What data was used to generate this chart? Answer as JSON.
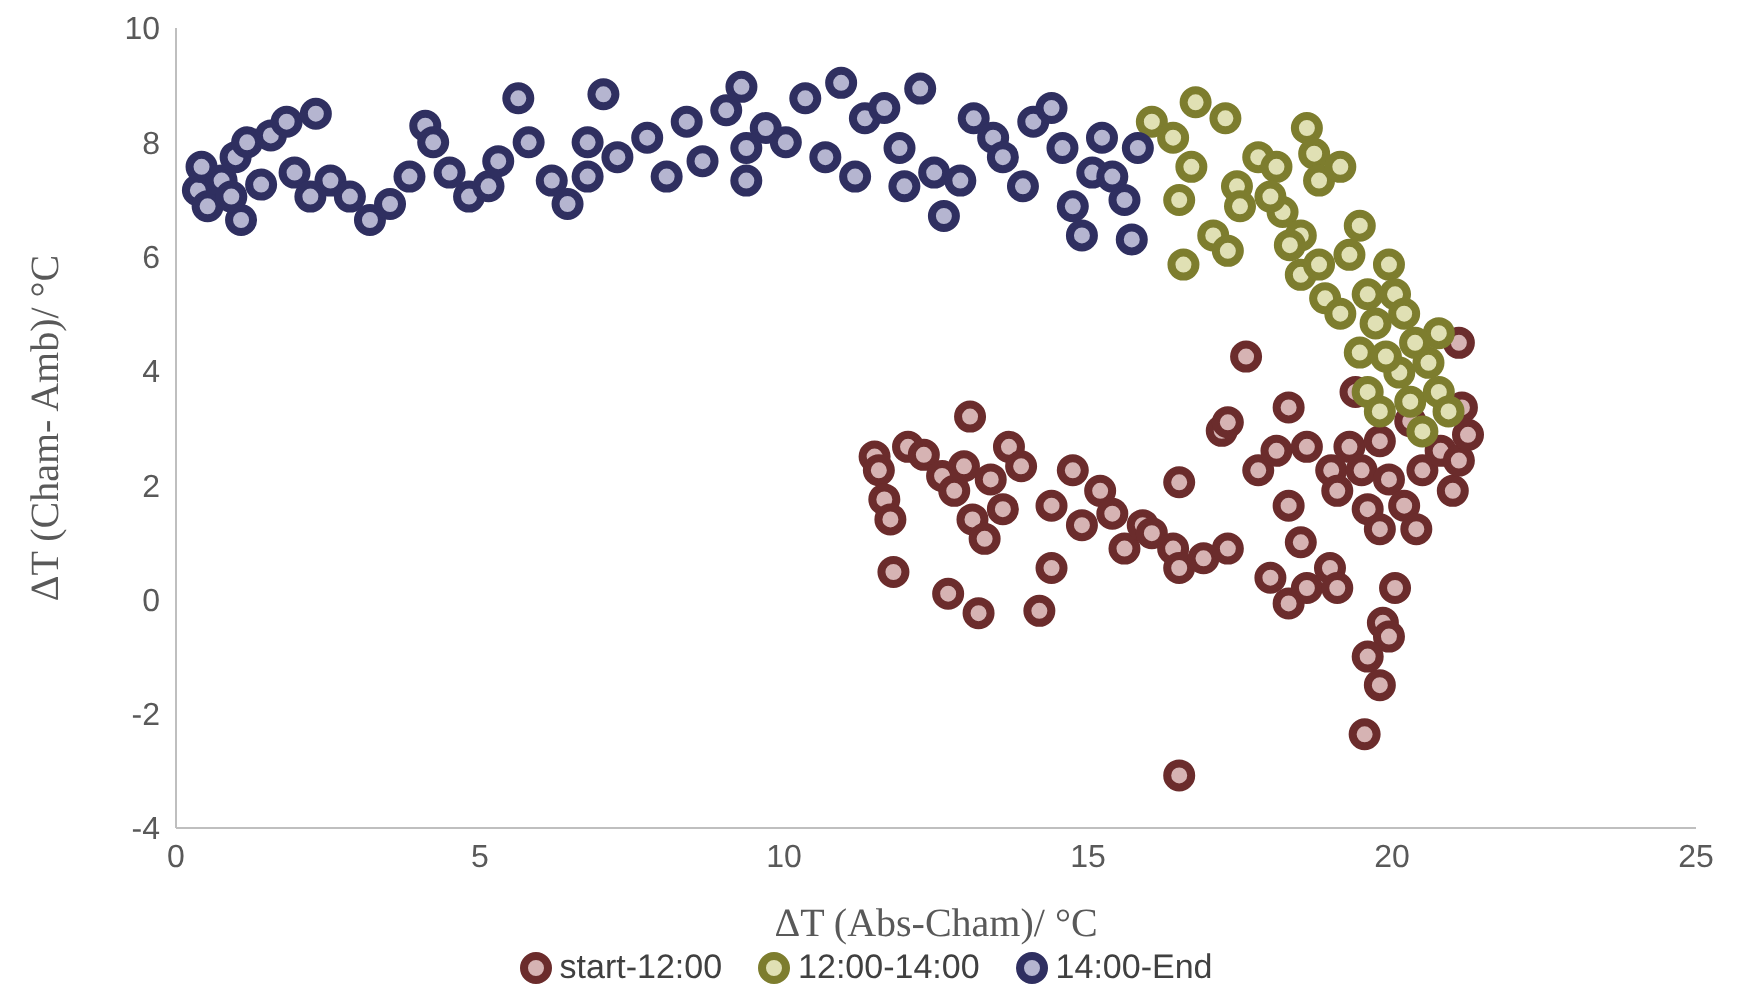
{
  "chart_data": {
    "type": "scatter",
    "xlabel": "ΔT (Abs-Cham)/ °C",
    "ylabel": "ΔT (Cham- Amb)/ °C",
    "xlim": [
      0,
      25
    ],
    "xticks": [
      0,
      5,
      10,
      15,
      20,
      25
    ],
    "ylim": [
      -4,
      10
    ],
    "yticks": [
      -4,
      -2,
      0,
      2,
      4,
      6,
      8,
      10
    ],
    "grid": false,
    "legend": "bottom",
    "marker": "circle",
    "series": [
      {
        "name": "start-12:00",
        "color": "#6b2c2c",
        "x": [
          11.49,
          11.56,
          11.65,
          11.75,
          11.8,
          12.04,
          12.3,
          12.6,
          12.8,
          12.96,
          13.06,
          13.1,
          13.3,
          12.7,
          13.2,
          13.4,
          13.7,
          13.6,
          13.9,
          14.4,
          14.4,
          14.2,
          14.75,
          14.9,
          15.2,
          15.4,
          15.6,
          15.9,
          16.05,
          16.4,
          16.5,
          16.5,
          16.9,
          17.3,
          17.6,
          17.2,
          17.3,
          17.8,
          18.1,
          18.3,
          18.3,
          18.5,
          18.0,
          18.3,
          18.6,
          18.98,
          19.1,
          18.6,
          19.0,
          19.1,
          19.3,
          19.5,
          19.6,
          19.8,
          19.95,
          20.05,
          19.85,
          19.95,
          19.6,
          19.8,
          19.55,
          16.5,
          19.4,
          20.2,
          20.4,
          20.5,
          20.3,
          20.8,
          21.0,
          21.1,
          21.15,
          21.1,
          21.25,
          19.8
        ],
        "values": [
          2.5,
          2.26,
          1.75,
          1.4,
          0.48,
          2.67,
          2.53,
          2.16,
          1.9,
          2.33,
          3.2,
          1.4,
          1.06,
          0.1,
          -0.24,
          2.1,
          2.67,
          1.58,
          2.33,
          1.64,
          0.55,
          -0.2,
          2.26,
          1.3,
          1.9,
          1.5,
          0.89,
          1.3,
          1.16,
          0.89,
          2.05,
          0.55,
          0.72,
          0.89,
          4.25,
          2.95,
          3.1,
          2.26,
          2.6,
          1.64,
          3.36,
          1.0,
          0.38,
          -0.07,
          0.2,
          0.55,
          0.2,
          2.67,
          2.26,
          1.9,
          2.67,
          2.26,
          1.58,
          1.23,
          2.1,
          0.2,
          -0.41,
          -0.65,
          -1.0,
          -1.5,
          -2.36,
          -3.08,
          3.63,
          1.64,
          1.23,
          2.26,
          3.12,
          2.6,
          1.9,
          2.43,
          3.36,
          4.49,
          2.88,
          2.77
        ]
      },
      {
        "name": "12:00-14:00",
        "color": "#7d7d2e",
        "x": [
          16.05,
          16.4,
          16.77,
          17.26,
          16.5,
          16.57,
          17.06,
          17.3,
          17.45,
          17.8,
          18.1,
          18.6,
          18.72,
          18.8,
          19.15,
          18.2,
          18.5,
          18.5,
          18.8,
          18.9,
          19.3,
          19.47,
          19.6,
          19.73,
          19.95,
          20.05,
          20.2,
          19.47,
          19.6,
          19.8,
          20.12,
          20.3,
          20.5,
          20.6,
          20.77,
          20.77,
          20.38,
          20.93,
          16.7,
          17.5,
          18.0,
          18.32,
          19.15,
          19.9
        ],
        "values": [
          8.36,
          8.08,
          8.7,
          8.42,
          6.99,
          5.86,
          6.37,
          6.1,
          7.23,
          7.74,
          7.57,
          8.25,
          7.8,
          7.33,
          7.57,
          6.78,
          6.37,
          5.68,
          5.86,
          5.27,
          6.03,
          6.54,
          5.34,
          4.83,
          5.86,
          5.34,
          5.0,
          4.32,
          3.63,
          3.29,
          3.97,
          3.46,
          2.94,
          4.14,
          3.63,
          4.66,
          4.49,
          3.29,
          7.57,
          6.88,
          7.05,
          6.2,
          5.0,
          4.25
        ]
      },
      {
        "name": "14:00-End",
        "color": "#2f2f60",
        "x": [
          0.36,
          0.42,
          0.52,
          0.75,
          0.98,
          1.07,
          1.17,
          1.4,
          1.56,
          1.82,
          1.95,
          2.3,
          2.54,
          2.86,
          3.19,
          3.52,
          3.84,
          4.1,
          4.23,
          4.5,
          4.82,
          5.14,
          5.3,
          5.63,
          5.8,
          6.18,
          6.44,
          6.77,
          7.03,
          7.26,
          7.75,
          8.07,
          8.4,
          8.66,
          9.05,
          9.3,
          9.38,
          9.7,
          10.03,
          10.35,
          10.68,
          10.94,
          11.17,
          11.33,
          11.65,
          11.9,
          12.24,
          12.47,
          12.63,
          12.9,
          13.12,
          13.44,
          13.6,
          13.93,
          14.1,
          14.4,
          14.58,
          14.75,
          14.9,
          15.07,
          15.23,
          15.4,
          15.6,
          15.72,
          15.82,
          0.91,
          2.21,
          6.77,
          11.98,
          9.38
        ],
        "values": [
          7.16,
          7.57,
          6.88,
          7.33,
          7.74,
          6.64,
          8.0,
          7.26,
          8.12,
          8.36,
          7.47,
          8.5,
          7.33,
          7.05,
          6.64,
          6.92,
          7.4,
          8.29,
          8.0,
          7.47,
          7.05,
          7.23,
          7.67,
          8.77,
          8.0,
          7.33,
          6.92,
          8.0,
          8.84,
          7.74,
          8.08,
          7.4,
          8.36,
          7.67,
          8.56,
          8.97,
          7.33,
          8.25,
          8.0,
          8.77,
          7.74,
          9.04,
          7.4,
          8.42,
          8.6,
          7.9,
          8.94,
          7.47,
          6.71,
          7.33,
          8.42,
          8.08,
          7.74,
          7.23,
          8.36,
          8.6,
          7.9,
          6.88,
          6.37,
          7.47,
          8.08,
          7.4,
          6.99,
          6.3,
          7.9,
          7.05,
          7.05,
          7.4,
          7.23,
          7.9
        ]
      }
    ]
  }
}
